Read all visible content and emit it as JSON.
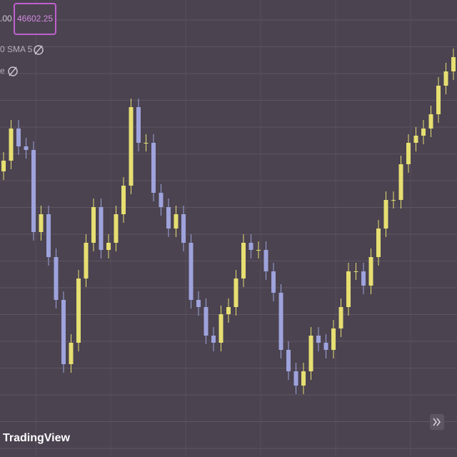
{
  "chart_data": {
    "type": "candlestick",
    "price_partial": ".00",
    "price_label": "46602.25",
    "indicator_label": "0 SMA 5",
    "indicator_partial": "e",
    "brand": "TradingView",
    "up_color": "#e6df72",
    "down_color": "#9ea3dc",
    "ylim": [
      0,
      640
    ],
    "open": [
      400,
      415,
      460,
      435,
      430,
      315,
      340,
      280,
      220,
      130,
      160,
      250,
      300,
      350,
      290,
      300,
      340,
      380,
      490,
      440,
      440,
      370,
      350,
      320,
      340,
      300,
      220,
      210,
      170,
      160,
      200,
      210,
      250,
      300,
      290,
      290,
      260,
      230,
      150,
      120,
      100,
      120,
      170,
      160,
      150,
      180,
      210,
      260,
      260,
      240,
      280,
      320,
      360,
      360,
      410,
      440,
      450,
      460,
      480,
      520,
      540
    ],
    "close": [
      415,
      460,
      435,
      430,
      315,
      340,
      280,
      220,
      130,
      160,
      250,
      300,
      350,
      290,
      300,
      340,
      380,
      490,
      440,
      440,
      370,
      350,
      320,
      340,
      300,
      220,
      210,
      170,
      160,
      200,
      210,
      250,
      300,
      290,
      290,
      260,
      230,
      150,
      120,
      100,
      120,
      170,
      160,
      150,
      180,
      210,
      260,
      260,
      240,
      280,
      320,
      360,
      360,
      410,
      440,
      450,
      460,
      480,
      520,
      540,
      560
    ],
    "high": [
      427,
      472,
      472,
      447,
      442,
      352,
      352,
      292,
      232,
      172,
      262,
      312,
      362,
      362,
      312,
      352,
      392,
      502,
      502,
      452,
      452,
      382,
      362,
      352,
      352,
      312,
      232,
      222,
      182,
      212,
      222,
      262,
      312,
      312,
      302,
      302,
      272,
      242,
      162,
      132,
      132,
      182,
      182,
      172,
      192,
      222,
      272,
      272,
      272,
      292,
      332,
      372,
      372,
      422,
      452,
      462,
      472,
      492,
      532,
      552,
      572
    ],
    "low": [
      388,
      403,
      423,
      418,
      303,
      303,
      268,
      208,
      118,
      118,
      148,
      238,
      288,
      278,
      278,
      288,
      328,
      368,
      428,
      428,
      358,
      338,
      308,
      308,
      288,
      208,
      198,
      158,
      148,
      148,
      188,
      198,
      238,
      278,
      278,
      248,
      218,
      138,
      108,
      88,
      88,
      108,
      148,
      138,
      138,
      168,
      198,
      248,
      228,
      228,
      268,
      308,
      348,
      348,
      398,
      428,
      438,
      448,
      468,
      508,
      528
    ]
  }
}
